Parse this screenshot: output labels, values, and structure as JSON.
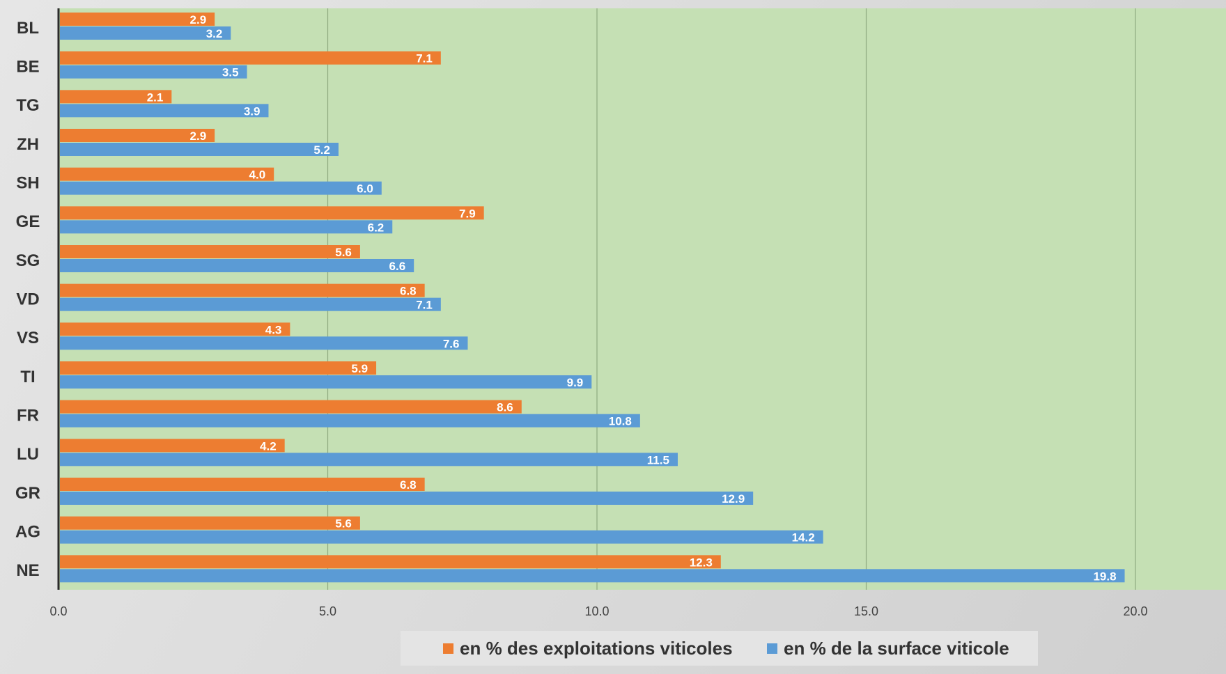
{
  "chart_data": {
    "type": "bar",
    "orientation": "horizontal",
    "categories": [
      "BL",
      "BE",
      "TG",
      "ZH",
      "SH",
      "GE",
      "SG",
      "VD",
      "VS",
      "TI",
      "FR",
      "LU",
      "GR",
      "AG",
      "NE"
    ],
    "series": [
      {
        "name": "en % des exploitations viticoles",
        "color": "#ed7d31",
        "values": [
          2.9,
          7.1,
          2.1,
          2.9,
          4.0,
          7.9,
          5.6,
          6.8,
          4.3,
          5.9,
          8.6,
          4.2,
          6.8,
          5.6,
          12.3
        ]
      },
      {
        "name": "en % de la surface viticole",
        "color": "#5b9bd5",
        "values": [
          3.2,
          3.5,
          3.9,
          5.2,
          6.0,
          6.2,
          6.6,
          7.1,
          7.6,
          9.9,
          10.8,
          11.5,
          12.9,
          14.2,
          19.8
        ]
      }
    ],
    "xticks": [
      "0.0",
      "5.0",
      "10.0",
      "15.0",
      "20.0"
    ],
    "xlim": [
      0,
      22.7
    ],
    "grid": true,
    "plot_background": "#c5e0b4",
    "legend_position": "bottom",
    "title": "",
    "xlabel": "",
    "ylabel": ""
  }
}
